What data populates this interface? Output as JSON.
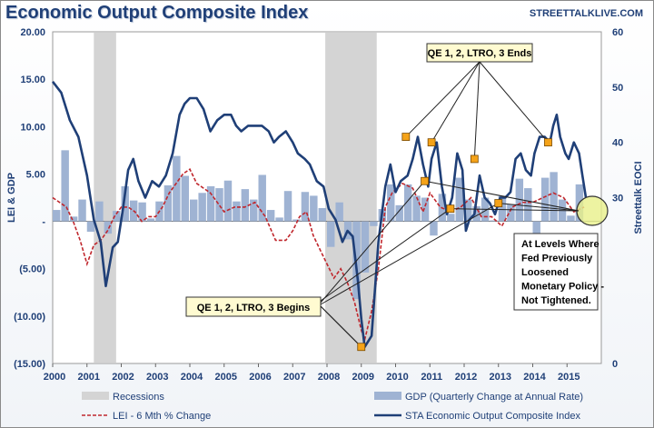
{
  "header": {
    "title": "Economic Output Composite Index",
    "source": "STREETTALKLIVE.COM"
  },
  "colors": {
    "recession": "#d4d4d4",
    "gdp": "#9fb3d3",
    "lei": "#c0272d",
    "eoci": "#1f3f77",
    "marker": "#f5a319",
    "callout_bg": "#fffbd1"
  },
  "chart_data": {
    "type": "line",
    "title": "Economic Output Composite Index",
    "x_tick_labels": [
      "2000",
      "2001",
      "2002",
      "2003",
      "2004",
      "2005",
      "2006",
      "2007",
      "2008",
      "2009",
      "2010",
      "2011",
      "2012",
      "2013",
      "2014",
      "2015"
    ],
    "y_left": {
      "label": "LEI & GDP",
      "range": [
        -15,
        20
      ],
      "ticks": [
        20,
        15,
        10,
        5,
        0,
        -5,
        -10,
        -15
      ],
      "tick_labels": [
        "20.00",
        "15.00",
        "10.00",
        "5.00",
        "-",
        "(5.00)",
        "(10.00)",
        "(15.00)"
      ]
    },
    "y_right": {
      "label": "Streettalk EOCI",
      "range": [
        0,
        60
      ],
      "ticks": [
        60,
        50,
        40,
        30,
        0
      ],
      "tick_labels": [
        "60",
        "50",
        "40",
        "30",
        "0"
      ]
    },
    "recessions": [
      [
        2001.2,
        2001.85
      ],
      [
        2007.95,
        2009.45
      ]
    ],
    "series": [
      {
        "name": "STA Economic Output Composite Index",
        "axis": "right",
        "x": [
          2000.0,
          2000.25,
          2000.5,
          2000.75,
          2001.0,
          2001.2,
          2001.4,
          2001.55,
          2001.75,
          2001.9,
          2002.05,
          2002.2,
          2002.35,
          2002.5,
          2002.7,
          2002.9,
          2003.1,
          2003.3,
          2003.5,
          2003.7,
          2003.85,
          2004.0,
          2004.2,
          2004.4,
          2004.6,
          2004.8,
          2005.0,
          2005.2,
          2005.35,
          2005.5,
          2005.7,
          2005.9,
          2006.1,
          2006.3,
          2006.45,
          2006.6,
          2006.8,
          2007.0,
          2007.15,
          2007.35,
          2007.5,
          2007.7,
          2007.9,
          2008.05,
          2008.25,
          2008.45,
          2008.6,
          2008.75,
          2008.9,
          2009.0,
          2009.1,
          2009.3,
          2009.5,
          2009.7,
          2009.85,
          2010.0,
          2010.15,
          2010.35,
          2010.5,
          2010.65,
          2010.8,
          2010.95,
          2011.05,
          2011.2,
          2011.35,
          2011.5,
          2011.65,
          2011.8,
          2011.95,
          2012.05,
          2012.15,
          2012.3,
          2012.45,
          2012.6,
          2012.75,
          2012.9,
          2013.05,
          2013.2,
          2013.35,
          2013.5,
          2013.65,
          2013.8,
          2013.95,
          2014.05,
          2014.2,
          2014.35,
          2014.5,
          2014.6,
          2014.7,
          2014.8,
          2014.95,
          2015.05,
          2015.2,
          2015.35,
          2015.45,
          2015.55
        ],
        "y": [
          51,
          49,
          44,
          41,
          34,
          26,
          22,
          14,
          21,
          22,
          28,
          35,
          37,
          33,
          30,
          33,
          32,
          34,
          38,
          45,
          47,
          48,
          48,
          46,
          42,
          44,
          45,
          45,
          43,
          42,
          43,
          43,
          43,
          42,
          40,
          41,
          42,
          40,
          38,
          37,
          36,
          33,
          32,
          28,
          26,
          22,
          24,
          23,
          15,
          8,
          3,
          5,
          22,
          32,
          36,
          31,
          33,
          34,
          37,
          41,
          36,
          32,
          37,
          40,
          32,
          27,
          30,
          38,
          35,
          24,
          26,
          27,
          34,
          30,
          29,
          27,
          30,
          30,
          31,
          37,
          38,
          35,
          34,
          38,
          41,
          41,
          40,
          43,
          45,
          41,
          38,
          37,
          40,
          38,
          34,
          30
        ]
      },
      {
        "name": "LEI - 6 Mth % Change",
        "axis": "left",
        "x": [
          2000.0,
          2000.2,
          2000.4,
          2000.6,
          2000.8,
          2001.0,
          2001.2,
          2001.4,
          2001.6,
          2001.8,
          2002.0,
          2002.2,
          2002.4,
          2002.6,
          2002.8,
          2003.0,
          2003.2,
          2003.4,
          2003.6,
          2003.8,
          2004.0,
          2004.2,
          2004.4,
          2004.6,
          2004.8,
          2005.0,
          2005.3,
          2005.6,
          2005.9,
          2006.2,
          2006.5,
          2006.8,
          2007.0,
          2007.2,
          2007.4,
          2007.6,
          2007.8,
          2008.0,
          2008.2,
          2008.4,
          2008.6,
          2008.8,
          2009.0,
          2009.1,
          2009.3,
          2009.5,
          2009.7,
          2009.9,
          2010.2,
          2010.5,
          2010.8,
          2011.0,
          2011.3,
          2011.6,
          2011.9,
          2012.2,
          2012.5,
          2012.8,
          2013.1,
          2013.4,
          2013.7,
          2014.0,
          2014.3,
          2014.6,
          2014.9,
          2015.2,
          2015.5
        ],
        "y": [
          2.5,
          2.0,
          1.5,
          0.0,
          -2.0,
          -4.5,
          -2.5,
          -2.0,
          -1.0,
          0.5,
          1.5,
          1.5,
          1.0,
          0.0,
          0.5,
          0.5,
          1.5,
          3.0,
          4.0,
          5.0,
          5.5,
          4.0,
          3.5,
          3.0,
          2.0,
          1.0,
          1.5,
          1.5,
          2.0,
          0.5,
          -2.0,
          -2.0,
          -1.0,
          0.5,
          1.0,
          -1.5,
          -3.0,
          -4.5,
          -6.0,
          -5.0,
          -6.5,
          -8.5,
          -11.5,
          -12.5,
          -9.5,
          -5.0,
          1.5,
          3.0,
          4.0,
          3.5,
          1.0,
          3.0,
          1.5,
          1.0,
          1.5,
          2.5,
          0.5,
          0.5,
          -0.5,
          1.5,
          2.0,
          2.0,
          2.5,
          3.0,
          2.5,
          1.0,
          1.5
        ]
      },
      {
        "name": "GDP (Quarterly Change at Annual Rate)",
        "axis": "left",
        "type": "bar",
        "x": [
          2000.0,
          2000.25,
          2000.5,
          2000.75,
          2001.0,
          2001.25,
          2001.5,
          2001.75,
          2002.0,
          2002.25,
          2002.5,
          2002.75,
          2003.0,
          2003.25,
          2003.5,
          2003.75,
          2004.0,
          2004.25,
          2004.5,
          2004.75,
          2005.0,
          2005.25,
          2005.5,
          2005.75,
          2006.0,
          2006.25,
          2006.5,
          2006.75,
          2007.0,
          2007.25,
          2007.5,
          2007.75,
          2008.0,
          2008.25,
          2008.5,
          2008.75,
          2009.0,
          2009.25,
          2009.5,
          2009.75,
          2010.0,
          2010.25,
          2010.5,
          2010.75,
          2011.0,
          2011.25,
          2011.5,
          2011.75,
          2012.0,
          2012.25,
          2012.5,
          2012.75,
          2013.0,
          2013.25,
          2013.5,
          2013.75,
          2014.0,
          2014.25,
          2014.5,
          2014.75,
          2015.0,
          2015.25
        ],
        "y": [
          1.2,
          7.5,
          0.5,
          2.3,
          -1.1,
          2.1,
          -1.3,
          1.1,
          3.7,
          2.2,
          2.0,
          0.3,
          2.1,
          3.8,
          6.9,
          4.8,
          2.3,
          3.0,
          3.7,
          3.5,
          4.3,
          2.1,
          3.4,
          2.3,
          4.9,
          1.2,
          0.4,
          3.2,
          0.2,
          3.1,
          2.7,
          1.4,
          -2.7,
          2.0,
          -1.9,
          -8.2,
          -5.4,
          -0.5,
          1.3,
          3.9,
          1.7,
          3.9,
          2.7,
          2.5,
          -1.5,
          2.9,
          0.8,
          4.6,
          2.3,
          1.6,
          2.5,
          0.1,
          2.7,
          1.8,
          4.5,
          3.5,
          -2.1,
          4.6,
          5.2,
          2.3,
          0.6,
          3.9
        ]
      }
    ],
    "markers": [
      {
        "x": 2009.0,
        "y": 3
      },
      {
        "x": 2010.3,
        "y": 41
      },
      {
        "x": 2010.85,
        "y": 33
      },
      {
        "x": 2011.05,
        "y": 40
      },
      {
        "x": 2011.6,
        "y": 28
      },
      {
        "x": 2012.3,
        "y": 37
      },
      {
        "x": 2013.0,
        "y": 29
      },
      {
        "x": 2014.45,
        "y": 40
      }
    ],
    "legend": [
      "Recessions",
      "GDP (Quarterly Change at Annual Rate)",
      "LEI - 6 Mth % Change",
      "STA Economic Output Composite Index"
    ],
    "annotations": {
      "qe_ends": "QE 1, 2, LTRO, 3 Ends",
      "qe_begins": "QE 1, 2, LTRO, 3 Begins",
      "levels_note": [
        "At Levels Where",
        "Fed Previously",
        "Loosened",
        "Monetary Policy -",
        "Not Tightened."
      ]
    }
  }
}
